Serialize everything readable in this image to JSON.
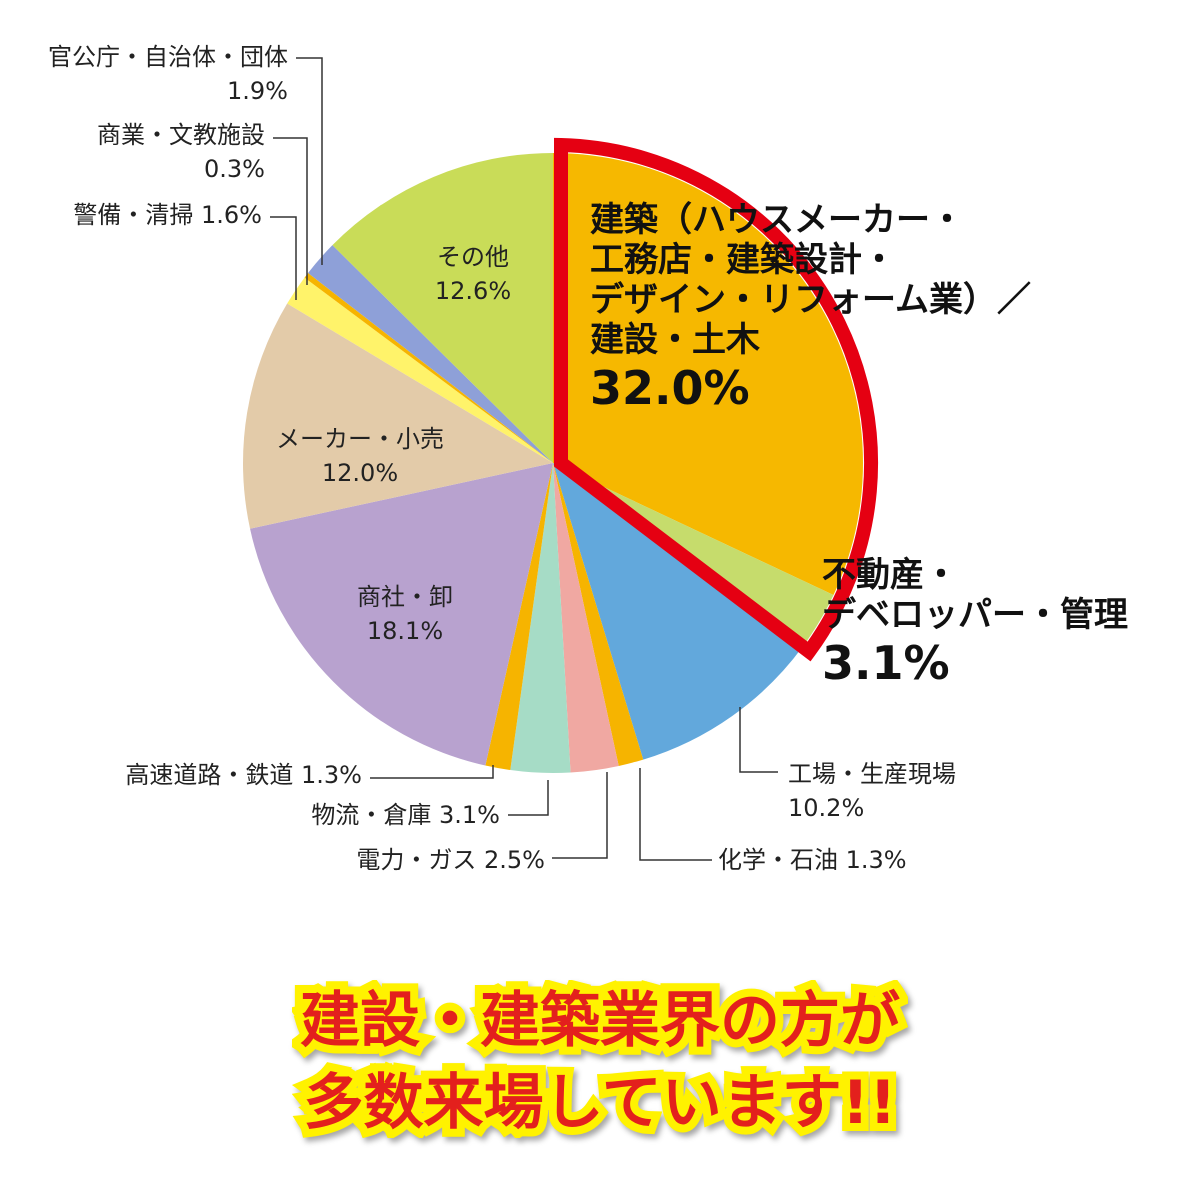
{
  "chart_data": {
    "type": "pie",
    "categories": [
      "建築（ハウスメーカー・\n工務店・建築設計・\nデザイン・リフォーム業）／\n建設・土木",
      "不動産・\nデベロッパー・管理",
      "工場・生産現場",
      "化学・石油",
      "電力・ガス",
      "物流・倉庫",
      "高速道路・鉄道",
      "商社・卸",
      "メーカー・小売",
      "警備・清掃",
      "商業・文教施設",
      "官公庁・自治体・団体",
      "その他"
    ],
    "values": [
      32.0,
      3.1,
      10.2,
      1.3,
      2.5,
      3.1,
      1.3,
      18.1,
      12.0,
      1.6,
      0.3,
      1.9,
      12.6
    ],
    "value_labels": [
      "32.0%",
      "3.1%",
      "10.2%",
      "1.3%",
      "2.5%",
      "3.1%",
      "1.3%",
      "18.1%",
      "12.0%",
      "1.6%",
      "0.3%",
      "1.9%",
      "12.6%"
    ],
    "colors": [
      "#f6b800",
      "#c6dc6c",
      "#62a8dc",
      "#f6b400",
      "#f0a8a2",
      "#a6dcc6",
      "#f6b400",
      "#b8a2cf",
      "#e3cba9",
      "#fff36a",
      "#f6b400",
      "#8ea0d8",
      "#c9dc58"
    ],
    "annotations": [
      "建設・建築業界の方が\n多数来場しています!!"
    ]
  }
}
